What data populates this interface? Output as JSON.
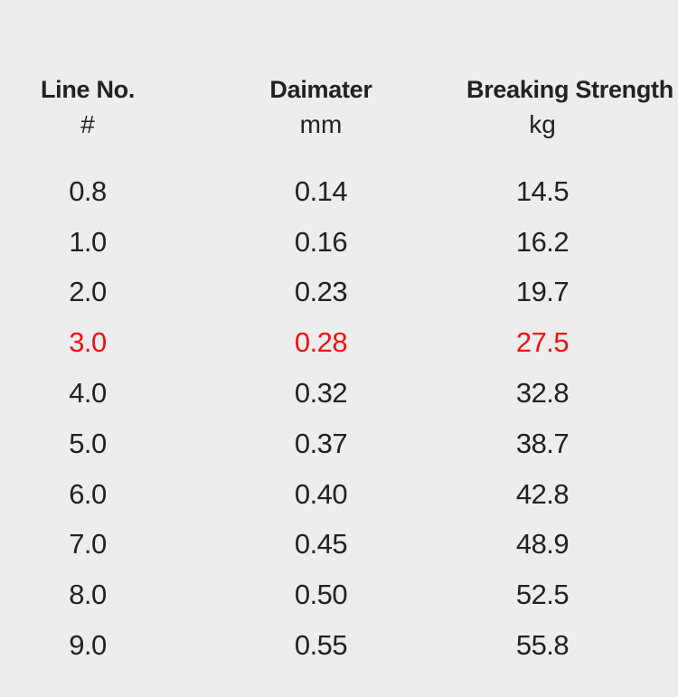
{
  "colors": {
    "background": "#ededed",
    "text": "#222222",
    "highlight": "#ee1111"
  },
  "table": {
    "columns": [
      {
        "label": "Line No.",
        "unit": "#"
      },
      {
        "label": "Daimater",
        "unit": "mm"
      },
      {
        "label": "Breaking Strength",
        "unit": "kg"
      }
    ],
    "rows": [
      {
        "line_no": "0.8",
        "diameter_mm": "0.14",
        "breaking_strength_kg": "14.5",
        "highlighted": false
      },
      {
        "line_no": "1.0",
        "diameter_mm": "0.16",
        "breaking_strength_kg": "16.2",
        "highlighted": false
      },
      {
        "line_no": "2.0",
        "diameter_mm": "0.23",
        "breaking_strength_kg": "19.7",
        "highlighted": false
      },
      {
        "line_no": "3.0",
        "diameter_mm": "0.28",
        "breaking_strength_kg": "27.5",
        "highlighted": true
      },
      {
        "line_no": "4.0",
        "diameter_mm": "0.32",
        "breaking_strength_kg": "32.8",
        "highlighted": false
      },
      {
        "line_no": "5.0",
        "diameter_mm": "0.37",
        "breaking_strength_kg": "38.7",
        "highlighted": false
      },
      {
        "line_no": "6.0",
        "diameter_mm": "0.40",
        "breaking_strength_kg": "42.8",
        "highlighted": false
      },
      {
        "line_no": "7.0",
        "diameter_mm": "0.45",
        "breaking_strength_kg": "48.9",
        "highlighted": false
      },
      {
        "line_no": "8.0",
        "diameter_mm": "0.50",
        "breaking_strength_kg": "52.5",
        "highlighted": false
      },
      {
        "line_no": "9.0",
        "diameter_mm": "0.55",
        "breaking_strength_kg": "55.8",
        "highlighted": false
      }
    ]
  },
  "chart_data": {
    "type": "table",
    "title": "",
    "columns": [
      "Line No. #",
      "Daimater mm",
      "Breaking Strength kg"
    ],
    "rows": [
      [
        "0.8",
        "0.14",
        "14.5"
      ],
      [
        "1.0",
        "0.16",
        "16.2"
      ],
      [
        "2.0",
        "0.23",
        "19.7"
      ],
      [
        "3.0",
        "0.28",
        "27.5"
      ],
      [
        "4.0",
        "0.32",
        "32.8"
      ],
      [
        "5.0",
        "0.37",
        "38.7"
      ],
      [
        "6.0",
        "0.40",
        "42.8"
      ],
      [
        "7.0",
        "0.45",
        "48.9"
      ],
      [
        "8.0",
        "0.50",
        "52.5"
      ],
      [
        "9.0",
        "0.55",
        "55.8"
      ]
    ],
    "highlighted_row_index": 3,
    "highlight_color": "#ee1111",
    "layout": {
      "background": "#ededed",
      "grid": false,
      "borders": false,
      "column_alignment": "center"
    }
  }
}
